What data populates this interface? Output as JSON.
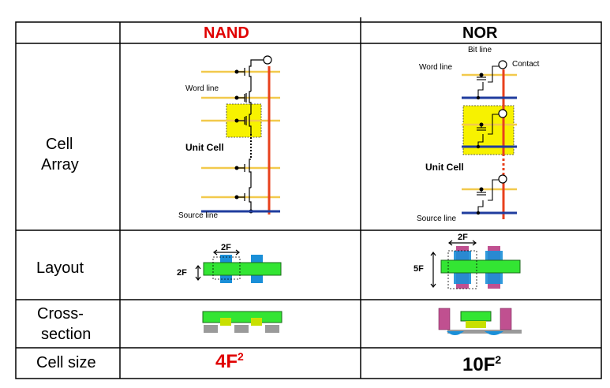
{
  "table": {
    "columns": [
      {
        "label": "NAND",
        "color": "#e00000"
      },
      {
        "label": "NOR",
        "color": "#000000"
      }
    ],
    "rows": {
      "cell_array": {
        "label_line1": "Cell",
        "label_line2": "Array"
      },
      "layout": {
        "label": "Layout"
      },
      "cross_section": {
        "label_line1": "Cross-",
        "label_line2": "section"
      },
      "cell_size": {
        "label": "Cell size"
      }
    },
    "nand": {
      "word_line": "Word line",
      "unit_cell": "Unit Cell",
      "source_line": "Source line",
      "layout_width": "2F",
      "layout_height": "2F",
      "cell_size_base": "4F",
      "cell_size_exp": "2"
    },
    "nor": {
      "bit_line": "Bit line",
      "word_line": "Word line",
      "contact": "Contact",
      "unit_cell": "Unit Cell",
      "source_line": "Source line",
      "layout_width": "2F",
      "layout_height": "5F",
      "cell_size_base": "10F",
      "cell_size_exp": "2"
    }
  },
  "colors": {
    "bit_line": "#e8401c",
    "word_line": "#f2c94c",
    "source_line": "#1f3c9e",
    "unit_cell_fill": "#f7f200",
    "active_green": "#33e533",
    "gate_blue": "#1a8fd8",
    "contact_pink": "#c05090",
    "substrate_gray": "#9a9a9a",
    "nand_red": "#e00000"
  }
}
